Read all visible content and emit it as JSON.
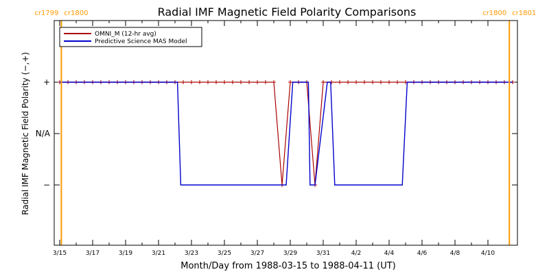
{
  "chart_data": {
    "type": "line",
    "title": "Radial IMF Magnetic Field Polarity Comparisons",
    "xlabel": "Month/Day from 1988-03-15 to 1988-04-11 (UT)",
    "ylabel": "Radial IMF Magnetic Field Polarity (−,+)",
    "x_unit": "days",
    "x_start_date": "1988-03-15",
    "xlim": [
      0,
      27.5
    ],
    "ylim": [
      -1.5,
      1.5
    ],
    "x_ticks": [
      {
        "x": 0,
        "label": "3/15"
      },
      {
        "x": 2,
        "label": "3/17"
      },
      {
        "x": 4,
        "label": "3/19"
      },
      {
        "x": 6,
        "label": "3/21"
      },
      {
        "x": 8,
        "label": "3/23"
      },
      {
        "x": 10,
        "label": "3/25"
      },
      {
        "x": 12,
        "label": "3/27"
      },
      {
        "x": 14,
        "label": "3/29"
      },
      {
        "x": 16,
        "label": "3/31"
      },
      {
        "x": 18,
        "label": "4/2"
      },
      {
        "x": 20,
        "label": "4/4"
      },
      {
        "x": 22,
        "label": "4/6"
      },
      {
        "x": 24,
        "label": "4/8"
      },
      {
        "x": 26,
        "label": "4/10"
      }
    ],
    "y_ticks": [
      {
        "y": 1,
        "label": "+"
      },
      {
        "y": 0,
        "label": "N/A"
      },
      {
        "y": -1,
        "label": "−"
      }
    ],
    "carrington_markers": [
      {
        "x": 0.1,
        "left": "cr1799",
        "right": "cr1800"
      },
      {
        "x": 27.3,
        "left": "cr1800",
        "right": "cr1801"
      }
    ],
    "legend": {
      "position": "top-left"
    },
    "series": [
      {
        "name": "OMNI_M (12-hr avg)",
        "color": "#aa0000",
        "markers": "plus",
        "points": [
          [
            0,
            1
          ],
          [
            0.5,
            1
          ],
          [
            1,
            1
          ],
          [
            1.5,
            1
          ],
          [
            2,
            1
          ],
          [
            2.5,
            1
          ],
          [
            3,
            1
          ],
          [
            3.5,
            1
          ],
          [
            4,
            1
          ],
          [
            4.5,
            1
          ],
          [
            5,
            1
          ],
          [
            5.5,
            1
          ],
          [
            6,
            1
          ],
          [
            6.5,
            1
          ],
          [
            7,
            1
          ],
          [
            7.5,
            1
          ],
          [
            8,
            1
          ],
          [
            8.5,
            1
          ],
          [
            9,
            1
          ],
          [
            9.5,
            1
          ],
          [
            10,
            1
          ],
          [
            10.5,
            1
          ],
          [
            11,
            1
          ],
          [
            11.5,
            1
          ],
          [
            12,
            1
          ],
          [
            12.5,
            1
          ],
          [
            13,
            1
          ],
          [
            13.5,
            -1
          ],
          [
            14,
            1
          ],
          [
            14.5,
            1
          ],
          [
            15,
            1
          ],
          [
            15.5,
            -1
          ],
          [
            16,
            1
          ],
          [
            16.5,
            1
          ],
          [
            17,
            1
          ],
          [
            17.5,
            1
          ],
          [
            18,
            1
          ],
          [
            18.5,
            1
          ],
          [
            19,
            1
          ],
          [
            19.5,
            1
          ],
          [
            20,
            1
          ],
          [
            20.5,
            1
          ],
          [
            21,
            1
          ],
          [
            21.5,
            1
          ],
          [
            22,
            1
          ],
          [
            22.5,
            1
          ],
          [
            23,
            1
          ],
          [
            23.5,
            1
          ],
          [
            24,
            1
          ],
          [
            24.5,
            1
          ],
          [
            25,
            1
          ],
          [
            25.5,
            1
          ],
          [
            26,
            1
          ],
          [
            26.5,
            1
          ],
          [
            27,
            1
          ],
          [
            27.5,
            1
          ]
        ]
      },
      {
        "name": "Predictive Science MAS Model",
        "color": "#0000cc",
        "markers": "none",
        "points": [
          [
            0,
            1
          ],
          [
            7.15,
            1
          ],
          [
            7.35,
            -1
          ],
          [
            13.75,
            -1
          ],
          [
            14.15,
            1
          ],
          [
            15.1,
            1
          ],
          [
            15.2,
            -1
          ],
          [
            15.5,
            -1
          ],
          [
            16.25,
            1
          ],
          [
            16.45,
            1
          ],
          [
            16.7,
            -1
          ],
          [
            20.8,
            -1
          ],
          [
            21.1,
            1
          ],
          [
            27.5,
            1
          ]
        ]
      }
    ]
  }
}
